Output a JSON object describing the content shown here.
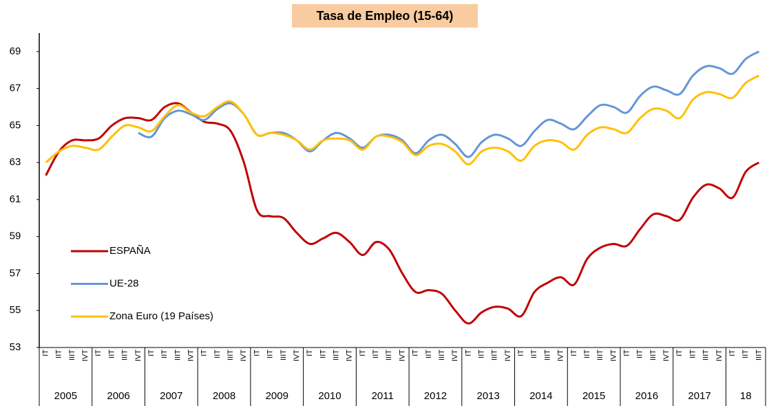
{
  "chart_data": {
    "type": "line",
    "title": "Tasa de Empleo (15-64)",
    "categories": [
      "IT",
      "IIT",
      "IIIT",
      "IVT",
      "IT",
      "IIT",
      "IIIT",
      "IVT",
      "IT",
      "IIT",
      "IIIT",
      "IVT",
      "IT",
      "IIT",
      "IIIT",
      "IVT",
      "IT",
      "IIT",
      "IIIT",
      "IVT",
      "IT",
      "IIT",
      "IIIT",
      "IVT",
      "IT",
      "IIT",
      "IIIT",
      "IVT",
      "IT",
      "IIT",
      "IIIT",
      "IVT",
      "IT",
      "IIT",
      "IIIT",
      "IVT",
      "IT",
      "IIT",
      "IIIT",
      "IVT",
      "IT",
      "IIT",
      "IIIT",
      "IVT",
      "IT",
      "IIT",
      "IIIT",
      "IVT",
      "IT",
      "IIT",
      "IIIT",
      "IVT",
      "IT",
      "IIT",
      "IIIT"
    ],
    "years": [
      "2005",
      "2006",
      "2007",
      "2008",
      "2009",
      "2010",
      "2011",
      "2012",
      "2013",
      "2014",
      "2015",
      "2016",
      "2017",
      "18"
    ],
    "series": [
      {
        "name": "ESPAÑA",
        "color": "#c00000",
        "values": [
          62.3,
          63.6,
          64.2,
          64.2,
          64.3,
          65.0,
          65.4,
          65.4,
          65.3,
          66.0,
          66.2,
          65.7,
          65.2,
          65.1,
          64.7,
          63.0,
          60.4,
          60.1,
          60.0,
          59.2,
          58.6,
          58.9,
          59.2,
          58.7,
          58.0,
          58.7,
          58.3,
          57.0,
          56.0,
          56.1,
          55.9,
          55.0,
          54.3,
          54.9,
          55.2,
          55.1,
          54.7,
          56.0,
          56.5,
          56.8,
          56.4,
          57.8,
          58.4,
          58.6,
          58.5,
          59.4,
          60.2,
          60.1,
          59.9,
          61.1,
          61.8,
          61.6,
          61.1,
          62.5,
          63.0
        ]
      },
      {
        "name": "UE-28",
        "color": "#6495d6",
        "values": [
          null,
          null,
          null,
          null,
          null,
          null,
          null,
          64.6,
          64.4,
          65.4,
          65.8,
          65.6,
          65.3,
          65.9,
          66.2,
          65.6,
          64.5,
          64.6,
          64.6,
          64.2,
          63.6,
          64.2,
          64.6,
          64.3,
          63.8,
          64.4,
          64.5,
          64.2,
          63.5,
          64.2,
          64.5,
          64.0,
          63.3,
          64.1,
          64.5,
          64.3,
          63.9,
          64.7,
          65.3,
          65.1,
          64.8,
          65.5,
          66.1,
          66.0,
          65.7,
          66.6,
          67.1,
          66.9,
          66.7,
          67.7,
          68.2,
          68.1,
          67.8,
          68.6,
          69.0
        ]
      },
      {
        "name": "Zona Euro (19 Países)",
        "color": "#ffc000",
        "values": [
          63.0,
          63.6,
          63.9,
          63.8,
          63.7,
          64.4,
          65.0,
          64.9,
          64.7,
          65.5,
          66.1,
          65.7,
          65.5,
          66.0,
          66.3,
          65.6,
          64.5,
          64.6,
          64.5,
          64.2,
          63.7,
          64.2,
          64.3,
          64.2,
          63.7,
          64.4,
          64.4,
          64.1,
          63.4,
          63.9,
          64.0,
          63.6,
          62.9,
          63.6,
          63.8,
          63.6,
          63.1,
          63.9,
          64.2,
          64.1,
          63.7,
          64.5,
          64.9,
          64.8,
          64.6,
          65.4,
          65.9,
          65.8,
          65.4,
          66.4,
          66.8,
          66.7,
          66.5,
          67.3,
          67.7
        ]
      }
    ],
    "ylim": [
      53,
      70
    ],
    "yticks": [
      53,
      55,
      57,
      59,
      61,
      63,
      65,
      67,
      69
    ],
    "grid": false
  }
}
